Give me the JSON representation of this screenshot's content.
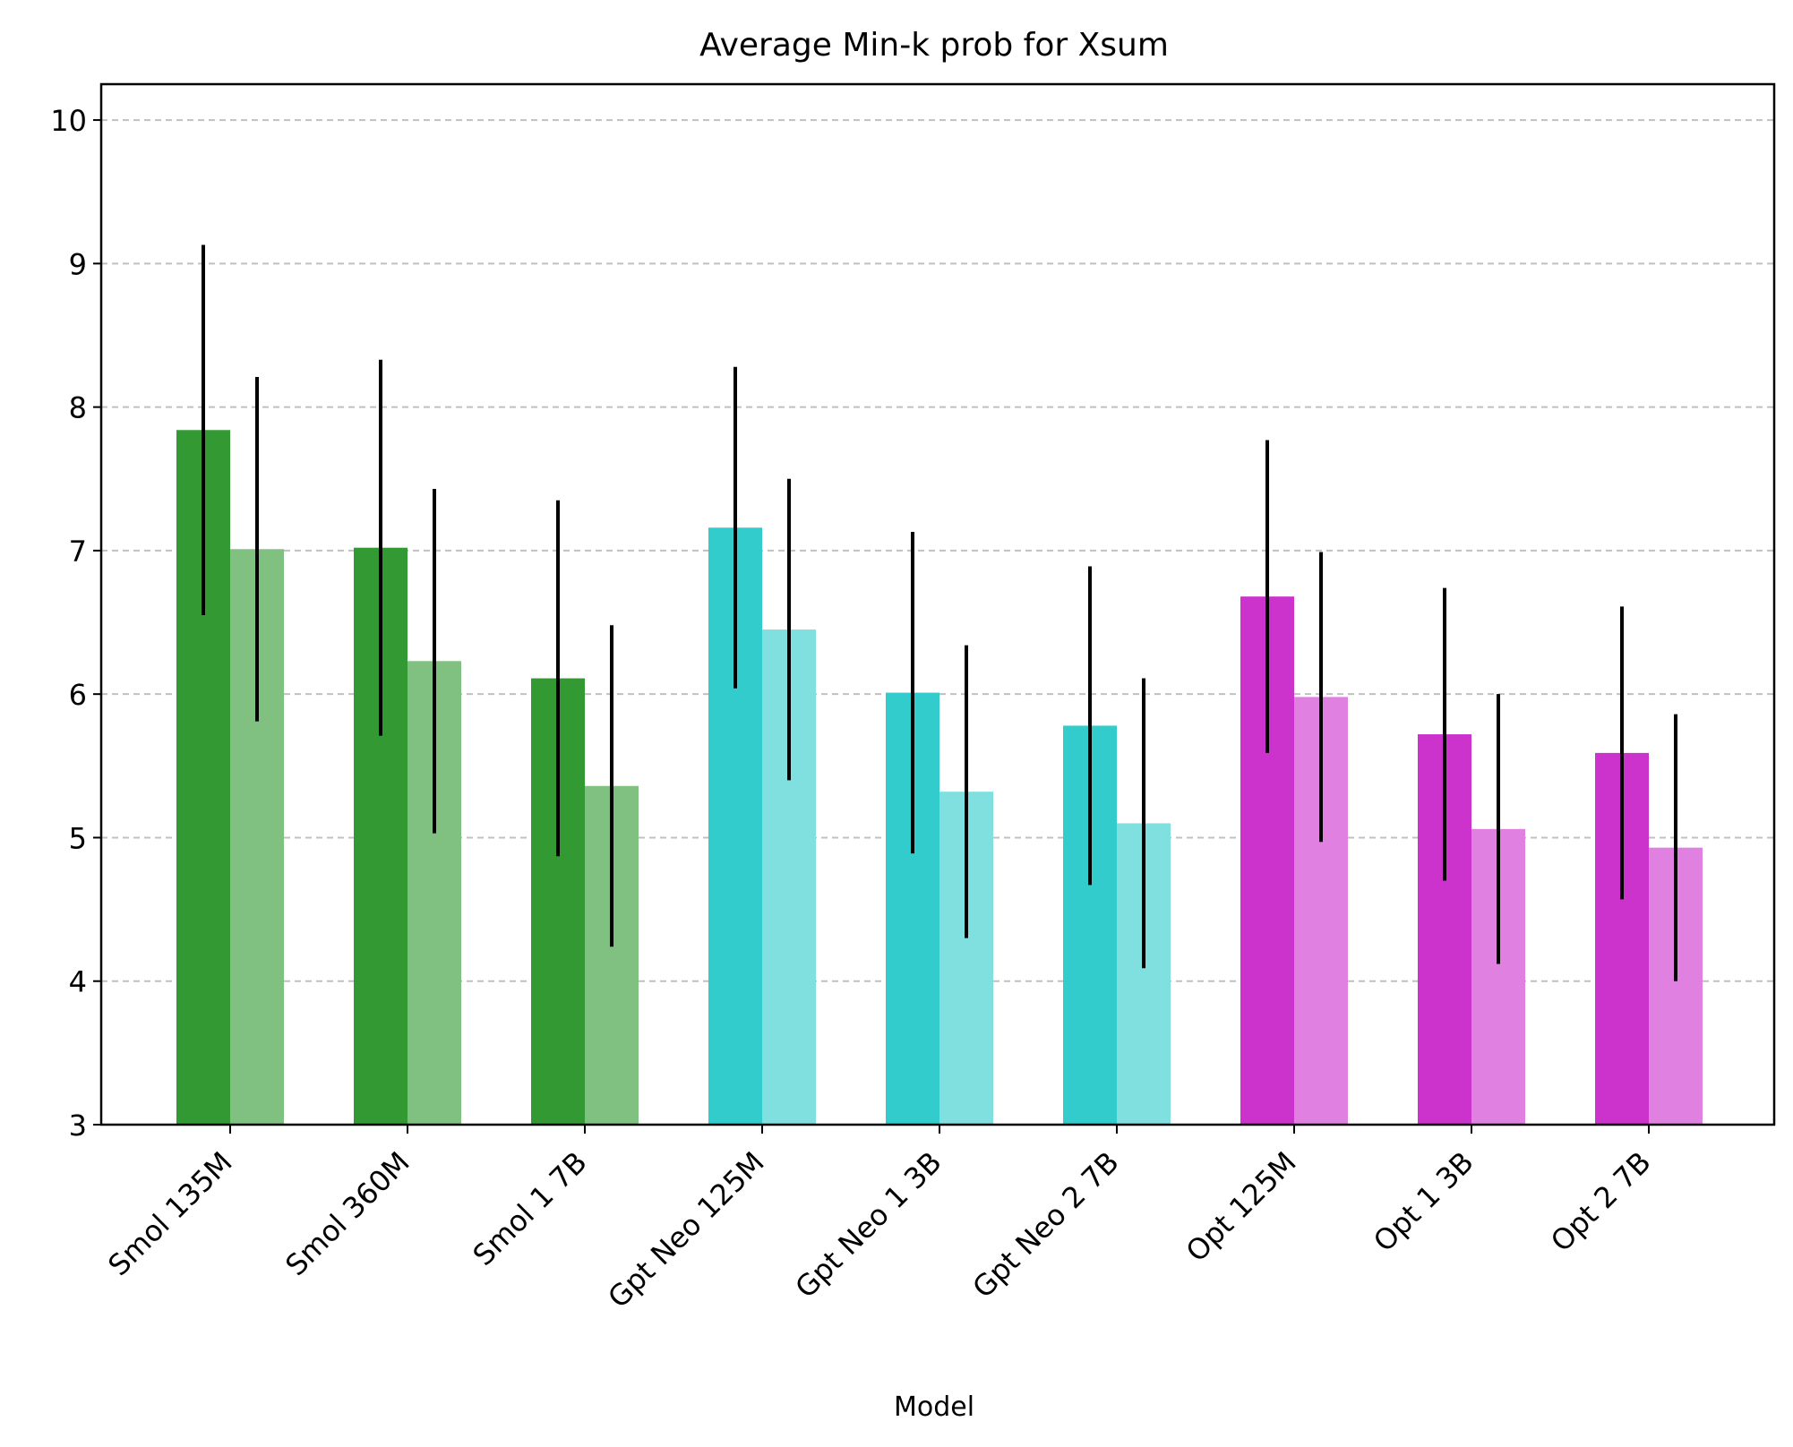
{
  "chart_data": {
    "type": "bar",
    "title": "Average Min-k prob for Xsum",
    "xlabel": "Model",
    "ylabel": "",
    "ylim": [
      3,
      10.25
    ],
    "yticks": [
      3,
      4,
      5,
      6,
      7,
      8,
      9,
      10
    ],
    "grid": "y dashed",
    "categories": [
      "Smol 135M",
      "Smol 360M",
      "Smol 1 7B",
      "Gpt Neo 125M",
      "Gpt Neo 1 3B",
      "Gpt Neo 2 7B",
      "Opt 125M",
      "Opt 1 3B",
      "Opt 2 7B"
    ],
    "series": [
      {
        "values": [
          7.84,
          7.02,
          6.11,
          7.16,
          6.01,
          5.78,
          6.68,
          5.72,
          5.59
        ],
        "errors": [
          1.29,
          1.31,
          1.24,
          1.12,
          1.12,
          1.11,
          1.09,
          1.02,
          1.02
        ]
      },
      {
        "values": [
          7.01,
          6.23,
          5.36,
          6.45,
          5.32,
          5.1,
          5.98,
          5.06,
          4.93
        ],
        "errors": [
          1.2,
          1.2,
          1.12,
          1.05,
          1.02,
          1.01,
          1.01,
          0.94,
          0.93
        ]
      }
    ],
    "colors": {
      "smol": [
        "#339933",
        "#80c080"
      ],
      "gptneo": [
        "#33cccc",
        "#80e0e0"
      ],
      "opt": [
        "#cc33cc",
        "#e080e0"
      ]
    },
    "color_groups": [
      "smol",
      "smol",
      "smol",
      "gptneo",
      "gptneo",
      "gptneo",
      "opt",
      "opt",
      "opt"
    ]
  }
}
